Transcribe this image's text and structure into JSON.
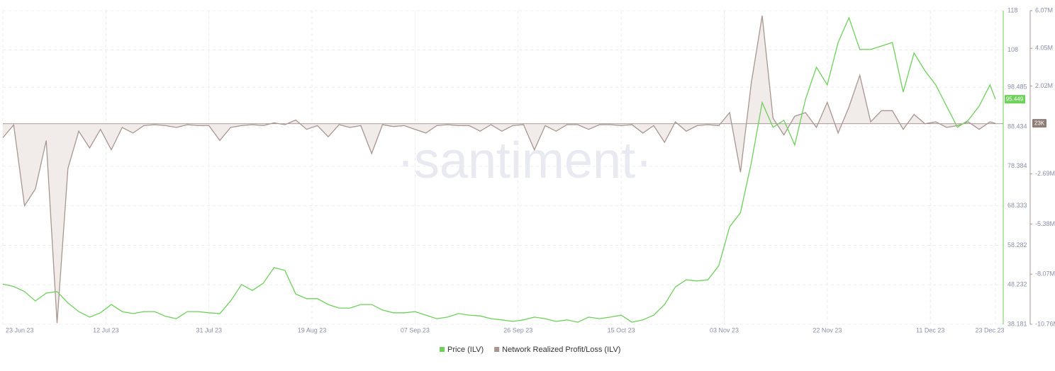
{
  "chart_data": {
    "type": "line",
    "watermark": "·santiment·",
    "x": [
      "23 Jun 23",
      "25 Jun 23",
      "27 Jun 23",
      "29 Jun 23",
      "01 Jul 23",
      "03 Jul 23",
      "05 Jul 23",
      "07 Jul 23",
      "09 Jul 23",
      "11 Jul 23",
      "13 Jul 23",
      "15 Jul 23",
      "17 Jul 23",
      "19 Jul 23",
      "21 Jul 23",
      "23 Jul 23",
      "25 Jul 23",
      "27 Jul 23",
      "29 Jul 23",
      "31 Jul 23",
      "02 Aug 23",
      "04 Aug 23",
      "06 Aug 23",
      "08 Aug 23",
      "10 Aug 23",
      "12 Aug 23",
      "14 Aug 23",
      "16 Aug 23",
      "18 Aug 23",
      "20 Aug 23",
      "22 Aug 23",
      "24 Aug 23",
      "26 Aug 23",
      "28 Aug 23",
      "30 Aug 23",
      "01 Sep 23",
      "03 Sep 23",
      "05 Sep 23",
      "07 Sep 23",
      "09 Sep 23",
      "11 Sep 23",
      "13 Sep 23",
      "15 Sep 23",
      "17 Sep 23",
      "19 Sep 23",
      "21 Sep 23",
      "23 Sep 23",
      "25 Sep 23",
      "27 Sep 23",
      "29 Sep 23",
      "01 Oct 23",
      "03 Oct 23",
      "05 Oct 23",
      "07 Oct 23",
      "09 Oct 23",
      "11 Oct 23",
      "13 Oct 23",
      "15 Oct 23",
      "17 Oct 23",
      "19 Oct 23",
      "21 Oct 23",
      "23 Oct 23",
      "25 Oct 23",
      "27 Oct 23",
      "29 Oct 23",
      "31 Oct 23",
      "02 Nov 23",
      "04 Nov 23",
      "06 Nov 23",
      "08 Nov 23",
      "10 Nov 23",
      "12 Nov 23",
      "14 Nov 23",
      "16 Nov 23",
      "18 Nov 23",
      "20 Nov 23",
      "22 Nov 23",
      "24 Nov 23",
      "26 Nov 23",
      "28 Nov 23",
      "30 Nov 23",
      "02 Dec 23",
      "04 Dec 23",
      "06 Dec 23",
      "08 Dec 23",
      "10 Dec 23",
      "12 Dec 23",
      "14 Dec 23",
      "16 Dec 23",
      "18 Dec 23",
      "20 Dec 23",
      "22 Dec 23",
      "23 Dec 23"
    ],
    "xlim": [
      "23 Jun 23",
      "23 Dec 23"
    ],
    "xticks": [
      "23 Jun 23",
      "12 Jul 23",
      "31 Jul 23",
      "19 Aug 23",
      "07 Sep 23",
      "26 Sep 23",
      "15 Oct 23",
      "03 Nov 23",
      "22 Nov 23",
      "11 Dec 23",
      "23 Dec 23"
    ],
    "ylim": [
      38.181,
      118
    ],
    "yticks": [
      38.181,
      48.232,
      58.282,
      68.333,
      78.384,
      88.434,
      98.485,
      108,
      118
    ],
    "y2lim": [
      -10760000,
      6070000
    ],
    "y2ticks": [
      {
        "value": -10760000,
        "label": "-10.76M"
      },
      {
        "value": -8070000,
        "label": "-8.07M"
      },
      {
        "value": -5380000,
        "label": "-5.38M"
      },
      {
        "value": -2690000,
        "label": "-2.69M"
      },
      {
        "value": 2020000,
        "label": "2.02M"
      },
      {
        "value": 4050000,
        "label": "4.05M"
      },
      {
        "value": 6070000,
        "label": "6.07M"
      }
    ],
    "grid": true,
    "legend": "bottom",
    "price_badge": 95.449,
    "nrpl_badge": {
      "value": 23000,
      "label": "23K"
    },
    "series": [
      {
        "name": "Price (ILV)",
        "color": "#6dd15a",
        "values": [
          48.4,
          47.8,
          46.5,
          44.1,
          46.1,
          46.5,
          43.6,
          41.4,
          40.0,
          41.1,
          43.2,
          41.4,
          40.9,
          41.4,
          41.4,
          40.2,
          39.6,
          41.4,
          41.4,
          41.1,
          40.9,
          44.1,
          48.3,
          46.8,
          48.6,
          52.6,
          51.9,
          45.9,
          44.7,
          44.7,
          43.2,
          42.3,
          42.3,
          43.2,
          43.2,
          41.8,
          41.1,
          41.1,
          41.4,
          40.5,
          39.6,
          40.0,
          40.9,
          40.5,
          40.3,
          39.6,
          39.3,
          38.9,
          39.3,
          40.0,
          39.6,
          38.9,
          39.3,
          38.7,
          40.0,
          39.6,
          40.0,
          40.5,
          38.7,
          39.3,
          40.5,
          43.2,
          47.7,
          49.5,
          49.2,
          49.5,
          53.1,
          63.0,
          66.6,
          79.3,
          94.6,
          88.3,
          90.1,
          83.8,
          95.5,
          103.6,
          99.1,
          109.9,
          116.2,
          108.1,
          108.1,
          109.0,
          109.9,
          97.3,
          107.2,
          102.7,
          99.1,
          93.7,
          88.3,
          90.1,
          93.7,
          99.1,
          95.449
        ]
      },
      {
        "name": "Network Realized Profit/Loss (ILV)",
        "color": "#a8968f",
        "axis": "y2",
        "values": [
          -750000,
          -60000,
          -4400000,
          -3500000,
          -900000,
          -10700000,
          -2400000,
          -400000,
          -1300000,
          -300000,
          -1400000,
          -200000,
          -500000,
          -100000,
          -50000,
          -100000,
          -200000,
          -50000,
          -100000,
          -100000,
          -900000,
          -200000,
          -100000,
          -50000,
          -100000,
          50000,
          -50000,
          200000,
          -300000,
          -100000,
          -700000,
          -50000,
          -200000,
          -100000,
          -1600000,
          -50000,
          -150000,
          -100000,
          -300000,
          -500000,
          -100000,
          -50000,
          -100000,
          -100000,
          -400000,
          -50000,
          -400000,
          -100000,
          -50000,
          -1400000,
          -100000,
          -400000,
          -50000,
          -50000,
          -300000,
          -50000,
          -50000,
          -100000,
          -50000,
          -500000,
          -100000,
          -1000000,
          100000,
          -400000,
          -100000,
          -50000,
          -100000,
          600000,
          -2600000,
          2200000,
          5800000,
          300000,
          -600000,
          400000,
          600000,
          -200000,
          1150000,
          -500000,
          900000,
          2600000,
          100000,
          700000,
          700000,
          -300000,
          500000,
          0,
          100000,
          -200000,
          -100000,
          100000,
          -300000,
          100000,
          23000
        ]
      }
    ]
  }
}
